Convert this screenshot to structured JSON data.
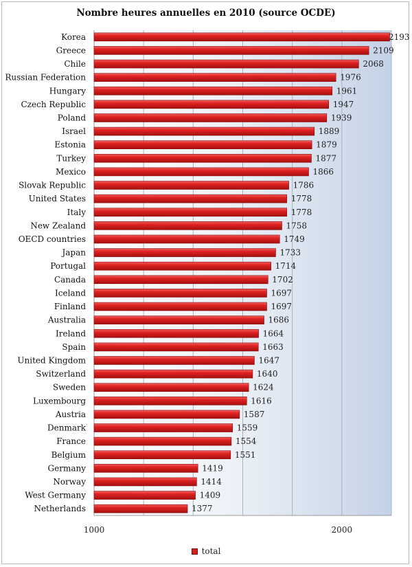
{
  "chart_data": {
    "type": "bar",
    "orientation": "horizontal",
    "title": "Nombre heures annuelles en 2010 (source OCDE)",
    "categories": [
      "Korea",
      "Greece",
      "Chile",
      "Russian Federation",
      "Hungary",
      "Czech Republic",
      "Poland",
      "Israel",
      "Estonia",
      "Turkey",
      "Mexico",
      "Slovak Republic",
      "United States",
      "Italy",
      "New Zealand",
      "OECD countries",
      "Japan",
      "Portugal",
      "Canada",
      "Iceland",
      "Finland",
      "Australia",
      "Ireland",
      "Spain",
      "United Kingdom",
      "Switzerland",
      "Sweden",
      "Luxembourg",
      "Austria",
      "Denmark",
      "France",
      "Belgium",
      "Germany",
      "Norway",
      "West Germany",
      "Netherlands"
    ],
    "series": [
      {
        "name": "total",
        "color": "#d62020",
        "values": [
          2193,
          2109,
          2068,
          1976,
          1961,
          1947,
          1939,
          1889,
          1879,
          1877,
          1866,
          1786,
          1778,
          1778,
          1758,
          1749,
          1733,
          1714,
          1702,
          1697,
          1697,
          1686,
          1664,
          1663,
          1647,
          1640,
          1624,
          1616,
          1587,
          1559,
          1554,
          1551,
          1419,
          1414,
          1409,
          1377
        ]
      }
    ],
    "xlim": [
      1000,
      2200
    ],
    "xticks": [
      1000,
      2000
    ],
    "grid": true,
    "legend_position": "bottom"
  }
}
